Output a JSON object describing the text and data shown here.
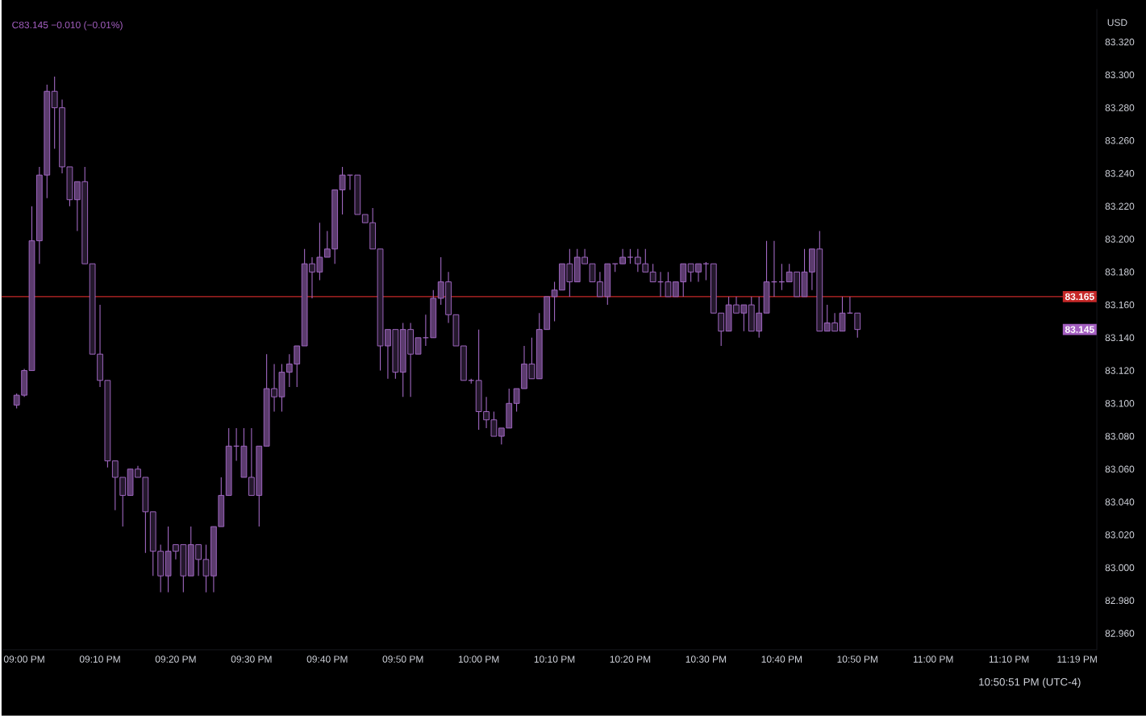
{
  "chart_data": {
    "type": "candlestick",
    "ylabel": "USD",
    "annotations": [
      "C83.145 −0.010 (−0.01%)",
      {
        "text": "83.145",
        "y": 83.145
      },
      "10:50:51 PM (UTC-4)"
    ],
    "xlim": [
      20.95,
      23.36
    ],
    "ylim": [
      82.95,
      83.34
    ],
    "xticks": [
      {
        "value": 21,
        "label": "09:00 PM"
      },
      {
        "value": 21.1667,
        "label": "09:10 PM"
      },
      {
        "value": 21.3333,
        "label": "09:20 PM"
      },
      {
        "value": 21.5,
        "label": "09:30 PM"
      },
      {
        "value": 21.6667,
        "label": "09:40 PM"
      },
      {
        "value": 21.8333,
        "label": "09:50 PM"
      },
      {
        "value": 22,
        "label": "10:00 PM"
      },
      {
        "value": 22.1667,
        "label": "10:10 PM"
      },
      {
        "value": 22.3333,
        "label": "10:20 PM"
      },
      {
        "value": 22.5,
        "label": "10:30 PM"
      },
      {
        "value": 22.6667,
        "label": "10:40 PM"
      },
      {
        "value": 22.8333,
        "label": "10:50 PM"
      },
      {
        "value": 23,
        "label": "11:00 PM"
      },
      {
        "value": 23.1667,
        "label": "11:10 PM"
      },
      {
        "value": 23.3167,
        "label": "11:19 PM"
      }
    ],
    "yticks": [
      {
        "value": 82.96,
        "label": "82.960"
      },
      {
        "value": 82.98,
        "label": "82.980"
      },
      {
        "value": 83.0,
        "label": "83.000"
      },
      {
        "value": 83.02,
        "label": "83.020"
      },
      {
        "value": 83.04,
        "label": "83.040"
      },
      {
        "value": 83.06,
        "label": "83.060"
      },
      {
        "value": 83.08,
        "label": "83.080"
      },
      {
        "value": 83.1,
        "label": "83.100"
      },
      {
        "value": 83.12,
        "label": "83.120"
      },
      {
        "value": 83.14,
        "label": "83.140"
      },
      {
        "value": 83.16,
        "label": "83.160"
      },
      {
        "value": 83.18,
        "label": "83.180"
      },
      {
        "value": 83.2,
        "label": "83.200"
      },
      {
        "value": 83.22,
        "label": "83.220"
      },
      {
        "value": 83.24,
        "label": "83.240"
      },
      {
        "value": 83.26,
        "label": "83.260"
      },
      {
        "value": 83.28,
        "label": "83.280"
      },
      {
        "value": 83.3,
        "label": "83.300"
      },
      {
        "value": 83.32,
        "label": "83.320"
      }
    ],
    "ref_lines": [
      {
        "axis": "y",
        "value": 83.165,
        "label": "83.165",
        "color": "#c62828"
      }
    ],
    "series": [
      {
        "color": "#a56bc7",
        "x": [
          20.9833,
          21.0,
          21.0167,
          21.0333,
          21.05,
          21.0667,
          21.0833,
          21.1,
          21.1167,
          21.1333,
          21.15,
          21.1667,
          21.1833,
          21.2,
          21.2167,
          21.2333,
          21.25,
          21.2667,
          21.2833,
          21.3,
          21.3167,
          21.3333,
          21.35,
          21.3667,
          21.3833,
          21.4,
          21.4167,
          21.4333,
          21.45,
          21.4667,
          21.4833,
          21.5,
          21.5167,
          21.5333,
          21.55,
          21.5667,
          21.5833,
          21.6,
          21.6167,
          21.6333,
          21.65,
          21.6667,
          21.6833,
          21.7,
          21.7167,
          21.7333,
          21.75,
          21.7667,
          21.7833,
          21.8,
          21.8167,
          21.8333,
          21.85,
          21.8667,
          21.8833,
          21.9,
          21.9167,
          21.9333,
          21.95,
          21.9667,
          21.9833,
          22.0,
          22.0167,
          22.0333,
          22.05,
          22.0667,
          22.0833,
          22.1,
          22.1167,
          22.1333,
          22.15,
          22.1667,
          22.1833,
          22.2,
          22.2167,
          22.2333,
          22.25,
          22.2667,
          22.2833,
          22.3,
          22.3167,
          22.3333,
          22.35,
          22.3667,
          22.3833,
          22.4,
          22.4167,
          22.4333,
          22.45,
          22.4667,
          22.4833,
          22.5,
          22.5167,
          22.5333,
          22.55,
          22.5667,
          22.5833,
          22.6,
          22.6167,
          22.6333,
          22.65,
          22.6667,
          22.6833,
          22.7,
          22.7167,
          22.7333,
          22.75,
          22.7667,
          22.7833,
          22.8,
          22.8167,
          22.8333
        ],
        "ohlc": [
          [
            83.099,
            83.106,
            83.097,
            83.105
          ],
          [
            83.105,
            83.121,
            83.104,
            83.12
          ],
          [
            83.12,
            83.22,
            83.12,
            83.199
          ],
          [
            83.199,
            83.244,
            83.185,
            83.239
          ],
          [
            83.239,
            83.294,
            83.225,
            83.29
          ],
          [
            83.29,
            83.299,
            83.255,
            83.28
          ],
          [
            83.28,
            83.285,
            83.24,
            83.244
          ],
          [
            83.244,
            83.244,
            83.22,
            83.224
          ],
          [
            83.224,
            83.235,
            83.205,
            83.235
          ],
          [
            83.235,
            83.244,
            83.185,
            83.185
          ],
          [
            83.185,
            83.185,
            83.13,
            83.13
          ],
          [
            83.13,
            83.16,
            83.11,
            83.114
          ],
          [
            83.114,
            83.114,
            83.061,
            83.065
          ],
          [
            83.065,
            83.065,
            83.035,
            83.055
          ],
          [
            83.055,
            83.055,
            83.025,
            83.044
          ],
          [
            83.044,
            83.06,
            83.044,
            83.06
          ],
          [
            83.06,
            83.062,
            83.055,
            83.055
          ],
          [
            83.055,
            83.055,
            83.009,
            83.034
          ],
          [
            83.034,
            83.034,
            82.995,
            83.01
          ],
          [
            83.01,
            83.014,
            82.985,
            82.995
          ],
          [
            82.995,
            83.025,
            82.985,
            83.01
          ],
          [
            83.014,
            83.014,
            83.005,
            83.01
          ],
          [
            83.014,
            83.014,
            82.985,
            82.995
          ],
          [
            82.995,
            83.025,
            82.995,
            83.014
          ],
          [
            83.014,
            83.014,
            82.995,
            83.005
          ],
          [
            83.005,
            83.014,
            82.985,
            82.995
          ],
          [
            82.995,
            83.025,
            82.985,
            83.025
          ],
          [
            83.025,
            83.055,
            83.025,
            83.044
          ],
          [
            83.044,
            83.085,
            83.044,
            83.074
          ],
          [
            83.074,
            83.085,
            83.065,
            83.074
          ],
          [
            83.055,
            83.085,
            83.055,
            83.074
          ],
          [
            83.055,
            83.085,
            83.044,
            83.044
          ],
          [
            83.044,
            83.074,
            83.025,
            83.074
          ],
          [
            83.074,
            83.13,
            83.074,
            83.109
          ],
          [
            83.109,
            83.124,
            83.095,
            83.104
          ],
          [
            83.104,
            83.124,
            83.095,
            83.119
          ],
          [
            83.119,
            83.13,
            83.11,
            83.124
          ],
          [
            83.124,
            83.135,
            83.11,
            83.135
          ],
          [
            83.135,
            83.194,
            83.135,
            83.185
          ],
          [
            83.185,
            83.189,
            83.164,
            83.18
          ],
          [
            83.18,
            83.21,
            83.175,
            83.189
          ],
          [
            83.189,
            83.205,
            83.189,
            83.194
          ],
          [
            83.194,
            83.23,
            83.185,
            83.23
          ],
          [
            83.23,
            83.244,
            83.215,
            83.239
          ],
          [
            83.239,
            83.239,
            83.23,
            83.239
          ],
          [
            83.239,
            83.239,
            83.215,
            83.215
          ],
          [
            83.215,
            83.215,
            83.21,
            83.21
          ],
          [
            83.21,
            83.219,
            83.194,
            83.194
          ],
          [
            83.194,
            83.194,
            83.12,
            83.135
          ],
          [
            83.135,
            83.145,
            83.115,
            83.145
          ],
          [
            83.145,
            83.145,
            83.115,
            83.119
          ],
          [
            83.119,
            83.149,
            83.104,
            83.145
          ],
          [
            83.145,
            83.149,
            83.104,
            83.13
          ],
          [
            83.13,
            83.14,
            83.13,
            83.14
          ],
          [
            83.14,
            83.154,
            83.135,
            83.14
          ],
          [
            83.14,
            83.169,
            83.14,
            83.164
          ],
          [
            83.164,
            83.189,
            83.16,
            83.174
          ],
          [
            83.174,
            83.18,
            83.149,
            83.154
          ],
          [
            83.154,
            83.154,
            83.135,
            83.135
          ],
          [
            83.135,
            83.135,
            83.114,
            83.114
          ],
          [
            83.114,
            83.115,
            83.112,
            83.114
          ],
          [
            83.114,
            83.145,
            83.084,
            83.095
          ],
          [
            83.095,
            83.104,
            83.085,
            83.09
          ],
          [
            83.09,
            83.095,
            83.08,
            83.08
          ],
          [
            83.08,
            83.085,
            83.075,
            83.085
          ],
          [
            83.085,
            83.109,
            83.085,
            83.1
          ],
          [
            83.1,
            83.109,
            83.095,
            83.109
          ],
          [
            83.109,
            83.135,
            83.109,
            83.124
          ],
          [
            83.124,
            83.14,
            83.115,
            83.115
          ],
          [
            83.115,
            83.155,
            83.115,
            83.145
          ],
          [
            83.145,
            83.165,
            83.145,
            83.165
          ],
          [
            83.165,
            83.174,
            83.15,
            83.169
          ],
          [
            83.169,
            83.185,
            83.169,
            83.185
          ],
          [
            83.185,
            83.194,
            83.165,
            83.174
          ],
          [
            83.174,
            83.194,
            83.174,
            83.189
          ],
          [
            83.189,
            83.194,
            83.185,
            83.185
          ],
          [
            83.185,
            83.185,
            83.174,
            83.174
          ],
          [
            83.174,
            83.18,
            83.165,
            83.165
          ],
          [
            83.165,
            83.185,
            83.16,
            83.185
          ],
          [
            83.185,
            83.185,
            83.18,
            83.185
          ],
          [
            83.185,
            83.194,
            83.185,
            83.189
          ],
          [
            83.189,
            83.194,
            83.185,
            83.189
          ],
          [
            83.189,
            83.194,
            83.18,
            83.185
          ],
          [
            83.185,
            83.194,
            83.18,
            83.18
          ],
          [
            83.18,
            83.185,
            83.174,
            83.174
          ],
          [
            83.174,
            83.18,
            83.165,
            83.174
          ],
          [
            83.174,
            83.18,
            83.165,
            83.165
          ],
          [
            83.165,
            83.174,
            83.165,
            83.174
          ],
          [
            83.174,
            83.185,
            83.165,
            83.185
          ],
          [
            83.185,
            83.185,
            83.174,
            83.18
          ],
          [
            83.18,
            83.185,
            83.174,
            83.185
          ],
          [
            83.185,
            83.186,
            83.175,
            83.185
          ],
          [
            83.185,
            83.185,
            83.155,
            83.155
          ],
          [
            83.155,
            83.155,
            83.135,
            83.144
          ],
          [
            83.144,
            83.165,
            83.144,
            83.16
          ],
          [
            83.16,
            83.165,
            83.155,
            83.155
          ],
          [
            83.155,
            83.16,
            83.144,
            83.16
          ],
          [
            83.16,
            83.165,
            83.144,
            83.144
          ],
          [
            83.144,
            83.165,
            83.14,
            83.155
          ],
          [
            83.155,
            83.199,
            83.155,
            83.174
          ],
          [
            83.174,
            83.199,
            83.165,
            83.174
          ],
          [
            83.174,
            83.185,
            83.169,
            83.174
          ],
          [
            83.174,
            83.185,
            83.174,
            83.18
          ],
          [
            83.18,
            83.18,
            83.165,
            83.165
          ],
          [
            83.165,
            83.194,
            83.165,
            83.18
          ],
          [
            83.18,
            83.194,
            83.169,
            83.194
          ],
          [
            83.194,
            83.205,
            83.144,
            83.144
          ],
          [
            83.144,
            83.16,
            83.144,
            83.149
          ],
          [
            83.149,
            83.155,
            83.144,
            83.144
          ],
          [
            83.144,
            83.165,
            83.144,
            83.155
          ],
          [
            83.155,
            83.165,
            83.155,
            83.155
          ],
          [
            83.155,
            83.155,
            83.14,
            83.145
          ]
        ]
      }
    ]
  }
}
